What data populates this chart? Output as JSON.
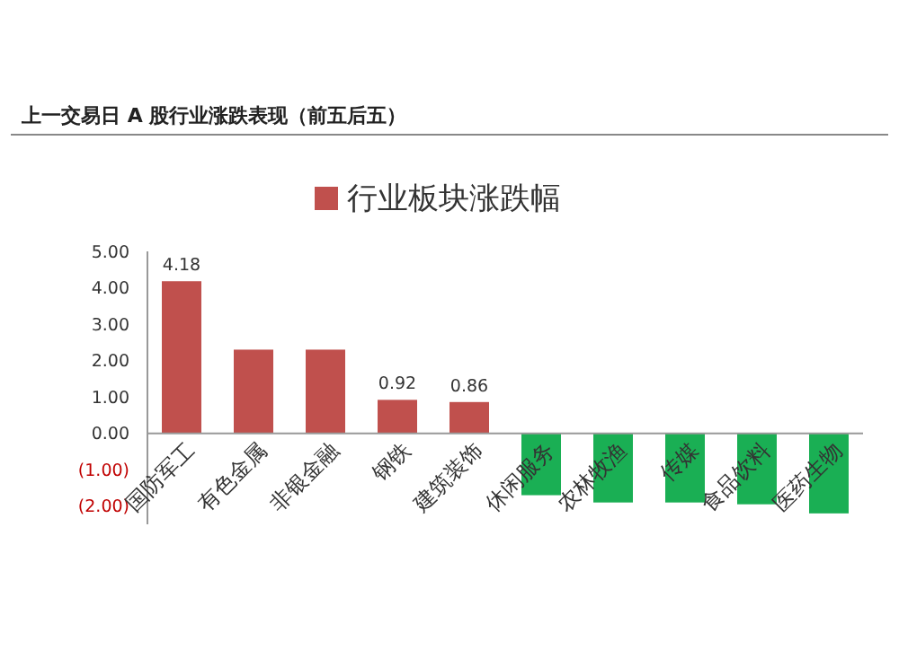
{
  "chart_data": {
    "type": "bar",
    "title": "上一交易日 A 股行业涨跌表现（前五后五）",
    "categories": [
      "国防军工",
      "有色金属",
      "非银金融",
      "钢铁",
      "建筑装饰",
      "休闲服务",
      "农林牧渔",
      "传媒",
      "食品饮料",
      "医药生物"
    ],
    "series": [
      {
        "name": "行业板块涨跌幅",
        "color": "#c0504d",
        "colors": [
          "#c0504d",
          "#c0504d",
          "#c0504d",
          "#c0504d",
          "#c0504d",
          "#1aaf54",
          "#1aaf54",
          "#1aaf54",
          "#1aaf54",
          "#1aaf54"
        ],
        "values": [
          4.18,
          2.3,
          2.3,
          0.92,
          0.86,
          -1.7,
          -1.9,
          -1.9,
          -1.95,
          -2.2
        ],
        "value_labels": [
          "4.18",
          null,
          null,
          "0.92",
          "0.86",
          null,
          null,
          null,
          null,
          null
        ]
      }
    ],
    "ylim": [
      -2.5,
      5
    ],
    "yticks": [
      {
        "value": 5,
        "label": "5.00"
      },
      {
        "value": 4,
        "label": "4.00"
      },
      {
        "value": 3,
        "label": "3.00"
      },
      {
        "value": 2,
        "label": "2.00"
      },
      {
        "value": 1,
        "label": "1.00"
      },
      {
        "value": 0,
        "label": "0.00"
      },
      {
        "value": -1,
        "label": "(1.00)"
      },
      {
        "value": -2,
        "label": "(2.00)"
      }
    ],
    "legend": "top",
    "grid": false
  }
}
